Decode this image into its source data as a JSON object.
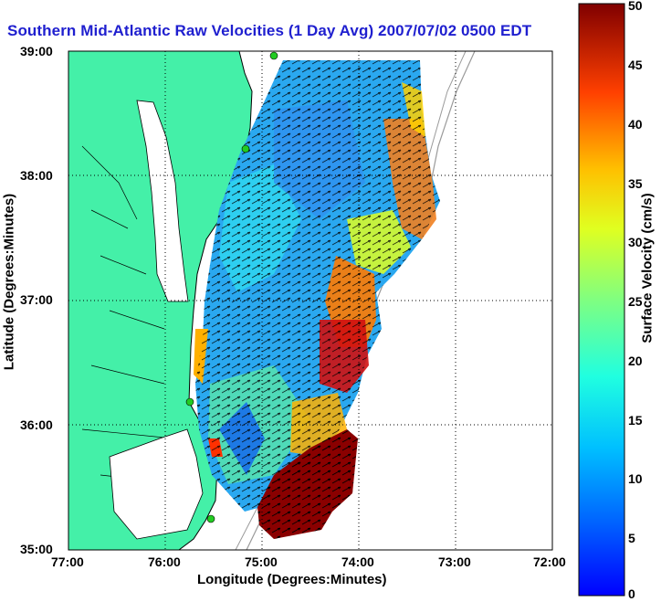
{
  "title": "Southern Mid-Atlantic Raw Velocities (1 Day Avg) 2007/07/02 0500 EDT",
  "map": {
    "xlabel": "Longitude (Degrees:Minutes)",
    "ylabel": "Latitude (Degrees:Minutes)",
    "x_ticks": [
      "77:00",
      "76:00",
      "75:00",
      "74:00",
      "73:00",
      "72:00"
    ],
    "y_ticks": [
      "39:00",
      "38:00",
      "37:00",
      "36:00",
      "35:00"
    ],
    "colors": {
      "land": "#44f0a8",
      "water": "#ffffff",
      "coastline": "#000000",
      "bathymetry": "#9a9a9a",
      "stations": "#22cc22"
    }
  },
  "colorbar": {
    "label": "Surface Velocity (cm/s)",
    "ticks": [
      "0",
      "5",
      "10",
      "15",
      "20",
      "25",
      "30",
      "35",
      "40",
      "45",
      "50"
    ],
    "min": 0,
    "max": 50
  }
}
